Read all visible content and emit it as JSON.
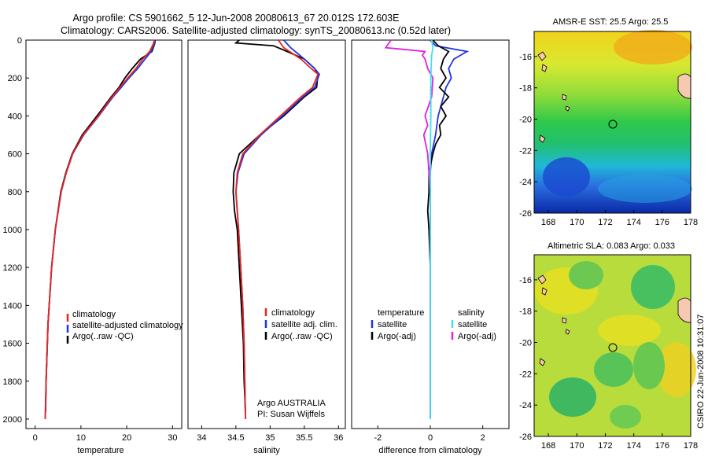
{
  "title": {
    "line1": "Argo profile: CS 5901662_5 12-Jun-2008 20080613_67 20.012S 172.603E",
    "line2": "Climatology: CARS2006. Satellite-adjusted climatology: synTS_20080613.nc (0.52d later)"
  },
  "colors": {
    "clim": "#e8251f",
    "sat": "#1f35e0",
    "argo": "#000000",
    "sal_sat": "#3fe0f0",
    "sal_argo": "#e020e0"
  },
  "depth_axis": {
    "min": 0,
    "max": 2050,
    "ticks": [
      "0",
      "200",
      "400",
      "600",
      "800",
      "1000",
      "1200",
      "1400",
      "1600",
      "1800",
      "2000"
    ]
  },
  "chart_data": [
    {
      "type": "line",
      "id": "temperature",
      "xlabel": "temperature",
      "xlim": [
        -2,
        32
      ],
      "xticks": [
        "0",
        "10",
        "20",
        "30"
      ],
      "legend": [
        "climatology",
        "satellite-adjusted climatology",
        "Argo(..raw -QC)"
      ],
      "series": [
        {
          "name": "climatology",
          "depth": [
            0,
            20,
            60,
            100,
            150,
            200,
            250,
            300,
            400,
            500,
            600,
            700,
            800,
            1000,
            1200,
            1500,
            1800,
            2000
          ],
          "values": [
            26,
            25.8,
            25,
            23.5,
            22,
            20.2,
            18.5,
            16.8,
            13.8,
            10.5,
            8.2,
            6.8,
            5.7,
            4.4,
            3.6,
            2.8,
            2.4,
            2.2
          ]
        },
        {
          "name": "satellite",
          "depth": [
            0,
            20,
            60,
            100,
            150,
            200,
            250,
            300,
            400,
            500,
            600,
            700,
            800,
            1000,
            1200,
            1500,
            1800,
            2000
          ],
          "values": [
            26.1,
            26,
            25.3,
            24,
            22.4,
            20.5,
            18.8,
            17,
            13.9,
            10.6,
            8.2,
            6.8,
            5.7,
            4.4,
            3.6,
            2.8,
            2.4,
            2.2
          ]
        },
        {
          "name": "argo",
          "depth": [
            0,
            20,
            60,
            100,
            150,
            200,
            250,
            300,
            400,
            500,
            600,
            700,
            800,
            1000,
            1200,
            1500,
            1800,
            1960
          ],
          "values": [
            26.2,
            26.1,
            25.5,
            23,
            21.2,
            19.6,
            18.3,
            16.6,
            13.5,
            10.3,
            8.1,
            6.7,
            5.6,
            4.4,
            3.6,
            2.8,
            2.4,
            2.3
          ]
        }
      ]
    },
    {
      "type": "line",
      "id": "salinity",
      "xlabel": "salinity",
      "xlim": [
        33.8,
        36.1
      ],
      "xticks": [
        "34",
        "34.5",
        "35",
        "35.5",
        "36"
      ],
      "legend": [
        "climatology",
        "satellite adj. clim.",
        "Argo(..raw -QC)"
      ],
      "series": [
        {
          "name": "climatology",
          "depth": [
            0,
            40,
            100,
            150,
            180,
            250,
            300,
            400,
            500,
            600,
            700,
            800,
            900,
            1000,
            1200,
            1400,
            1600,
            1800,
            2000
          ],
          "values": [
            35.12,
            35.2,
            35.45,
            35.6,
            35.7,
            35.62,
            35.45,
            35.15,
            34.85,
            34.6,
            34.52,
            34.5,
            34.52,
            34.54,
            34.57,
            34.6,
            34.62,
            34.63,
            34.64
          ]
        },
        {
          "name": "satellite",
          "depth": [
            0,
            40,
            100,
            150,
            180,
            250,
            300,
            400,
            500,
            600,
            700,
            800,
            900,
            1000,
            1200,
            1400,
            1600,
            1800,
            2000
          ],
          "values": [
            35.2,
            35.3,
            35.5,
            35.65,
            35.72,
            35.65,
            35.48,
            35.18,
            34.87,
            34.62,
            34.53,
            34.5,
            34.52,
            34.54,
            34.57,
            34.6,
            34.62,
            34.63,
            34.64
          ]
        },
        {
          "name": "argo",
          "depth": [
            0,
            15,
            30,
            60,
            100,
            150,
            180,
            250,
            300,
            400,
            500,
            600,
            700,
            800,
            900,
            1000,
            1200,
            1400,
            1600,
            1800,
            1960
          ],
          "values": [
            34.55,
            34.5,
            35.05,
            35.25,
            35.5,
            35.65,
            35.7,
            35.68,
            35.5,
            35.2,
            34.85,
            34.55,
            34.47,
            34.46,
            34.48,
            34.52,
            34.55,
            34.58,
            34.61,
            34.62,
            34.64
          ]
        }
      ]
    },
    {
      "type": "line",
      "id": "difference",
      "xlabel": "difference from climatology",
      "xlim": [
        -3,
        3
      ],
      "xticks": [
        "-2",
        "0",
        "2"
      ],
      "legend_temp_title": "temperature",
      "legend_sal_title": "salinity",
      "legend": [
        "satellite",
        "Argo(-adj)",
        "satellite",
        "Argo(-adj)"
      ],
      "series": [
        {
          "name": "temperature satellite",
          "depth": [
            0,
            30,
            60,
            100,
            150,
            200,
            250,
            300,
            400,
            500,
            600,
            700,
            800,
            1000,
            1500,
            2000
          ],
          "values": [
            0,
            0.2,
            1.4,
            0.9,
            0.7,
            0.8,
            0.6,
            0.5,
            0.3,
            0.2,
            0.05,
            0,
            0,
            0,
            0,
            0
          ]
        },
        {
          "name": "temperature argo",
          "depth": [
            0,
            30,
            60,
            100,
            150,
            200,
            250,
            300,
            350,
            400,
            450,
            500,
            550,
            600,
            700,
            800,
            900,
            1000,
            1200,
            1500,
            1800,
            1960
          ],
          "values": [
            0.1,
            0.3,
            0.7,
            0.5,
            0.4,
            0.6,
            0.35,
            0.7,
            0.4,
            0.6,
            0.35,
            0.4,
            0.2,
            0.1,
            -0.05,
            -0.05,
            -0.1,
            -0.05,
            0,
            0,
            0,
            0
          ]
        },
        {
          "name": "salinity satellite",
          "depth": [
            0,
            40,
            80,
            150,
            200,
            300,
            400,
            500,
            600,
            700,
            800,
            1000,
            1500,
            2000
          ],
          "values": [
            0.05,
            0.1,
            0.05,
            0.03,
            0.02,
            0.02,
            0.02,
            0.01,
            0,
            0,
            0,
            0,
            0,
            0
          ]
        },
        {
          "name": "salinity argo",
          "depth": [
            0,
            20,
            40,
            60,
            80,
            100,
            150,
            200,
            300,
            400,
            450,
            500,
            600,
            700,
            800,
            1000,
            1500,
            1960
          ],
          "values": [
            -1.5,
            -1.6,
            -1.7,
            -0.2,
            -0.3,
            -0.2,
            -0.1,
            0.1,
            0.05,
            -0.2,
            -0.1,
            -0.25,
            -0.1,
            -0.05,
            0,
            0,
            0,
            0
          ]
        }
      ]
    }
  ],
  "notes": {
    "line1": "Argo AUSTRALIA",
    "line2": "PI: Susan Wijffels"
  },
  "maps": [
    {
      "title": "AMSR-E SST: 25.5 Argo: 25.5",
      "xticks": [
        "168",
        "170",
        "172",
        "174",
        "176",
        "178"
      ],
      "yticks": [
        "-16",
        "-18",
        "-20",
        "-22",
        "-24",
        "-26"
      ]
    },
    {
      "title": "Altimetric SLA: 0.083 Argo: 0.033",
      "xticks": [
        "168",
        "170",
        "172",
        "174",
        "176",
        "178"
      ],
      "yticks": [
        "-16",
        "-18",
        "-20",
        "-22",
        "-24",
        "-26"
      ]
    }
  ],
  "footer": "CSIRO 22-Jun-2008 10:31:07"
}
